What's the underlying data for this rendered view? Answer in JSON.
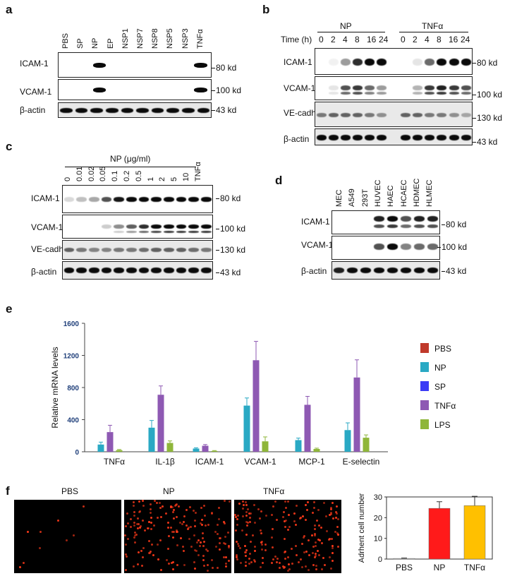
{
  "panels": {
    "a": {
      "letter": "a",
      "lanes": [
        "PBS",
        "SP",
        "NP",
        "EP",
        "NSP1",
        "NSP7",
        "NSP8",
        "NSP5",
        "NSP3",
        "TNFα"
      ],
      "rows": [
        {
          "label": "ICAM-1",
          "kd": "80 kd"
        },
        {
          "label": "VCAM-1",
          "kd": "100 kd"
        },
        {
          "label": "β-actin",
          "kd": "43 kd"
        }
      ]
    },
    "b": {
      "letter": "b",
      "group1": "NP",
      "group2": "TNFα",
      "time_label": "Time (h)",
      "times": [
        "0",
        "2",
        "4",
        "8",
        "16",
        "24"
      ],
      "rows": [
        {
          "label": "ICAM-1",
          "kd": "80 kd"
        },
        {
          "label": "VCAM-1",
          "kd": "100 kd"
        },
        {
          "label": "VE-cadherin",
          "kd": "130 kd"
        },
        {
          "label": "β-actin",
          "kd": "43 kd"
        }
      ]
    },
    "c": {
      "letter": "c",
      "header": "NP (μg/ml)",
      "lanes": [
        "0",
        "0.01",
        "0.02",
        "0.05",
        "0.1",
        "0.2",
        "0.5",
        "1",
        "2",
        "5",
        "10",
        "TNFα"
      ],
      "rows": [
        {
          "label": "ICAM-1",
          "kd": "80 kd"
        },
        {
          "label": "VCAM-1",
          "kd": "100 kd"
        },
        {
          "label": "VE-cadherin",
          "kd": "130 kd"
        },
        {
          "label": "β-actin",
          "kd": "43 kd"
        }
      ]
    },
    "d": {
      "letter": "d",
      "lanes": [
        "MEC",
        "A549",
        "293T",
        "HUVEC",
        "HAEC",
        "HCAEC",
        "HDMEC",
        "HLMEC"
      ],
      "rows": [
        {
          "label": "ICAM-1",
          "kd": "80 kd"
        },
        {
          "label": "VCAM-1",
          "kd": "100 kd"
        },
        {
          "label": "β-actin",
          "kd": "43 kd"
        }
      ]
    },
    "e": {
      "letter": "e"
    },
    "f": {
      "letter": "f",
      "images": [
        "PBS",
        "NP",
        "TNFα"
      ]
    }
  },
  "chart_data": [
    {
      "type": "bar",
      "ylabel": "Relative mRNA levels",
      "ylim": [
        0,
        1600
      ],
      "yticks": [
        "0",
        "400",
        "800",
        "1200",
        "1600"
      ],
      "categories": [
        "TNFα",
        "IL-1β",
        "ICAM-1",
        "VCAM-1",
        "MCP-1",
        "E-selectin"
      ],
      "series": [
        {
          "name": "PBS",
          "color": "#c0392b",
          "values": [
            0,
            0,
            0,
            0,
            0,
            0
          ],
          "errors": [
            0,
            0,
            0,
            0,
            0,
            0
          ]
        },
        {
          "name": "NP",
          "color": "#2aa9c4",
          "values": [
            90,
            300,
            40,
            575,
            145,
            270
          ],
          "errors": [
            30,
            90,
            10,
            95,
            25,
            90
          ]
        },
        {
          "name": "SP",
          "color": "#3b3bf5",
          "values": [
            0,
            0,
            0,
            0,
            0,
            0
          ],
          "errors": [
            0,
            0,
            0,
            0,
            0,
            0
          ]
        },
        {
          "name": "TNFα",
          "color": "#8e59b3",
          "values": [
            245,
            710,
            75,
            1140,
            585,
            925
          ],
          "errors": [
            85,
            110,
            15,
            235,
            105,
            220
          ]
        },
        {
          "name": "LPS",
          "color": "#8fb63a",
          "values": [
            20,
            110,
            10,
            130,
            35,
            175
          ],
          "errors": [
            8,
            25,
            5,
            55,
            10,
            35
          ]
        }
      ],
      "legend_placement": "right"
    },
    {
      "type": "bar",
      "ylabel": "Adrhent cell number",
      "ylim": [
        0,
        30
      ],
      "yticks": [
        "0",
        "10",
        "20",
        "30"
      ],
      "categories": [
        "PBS",
        "NP",
        "TNFα"
      ],
      "colors": [
        "#d9d9d9",
        "#ff1a1a",
        "#ffc000"
      ],
      "values": [
        0.3,
        24.5,
        25.8
      ],
      "errors": [
        0.2,
        3.2,
        4.5
      ]
    }
  ]
}
